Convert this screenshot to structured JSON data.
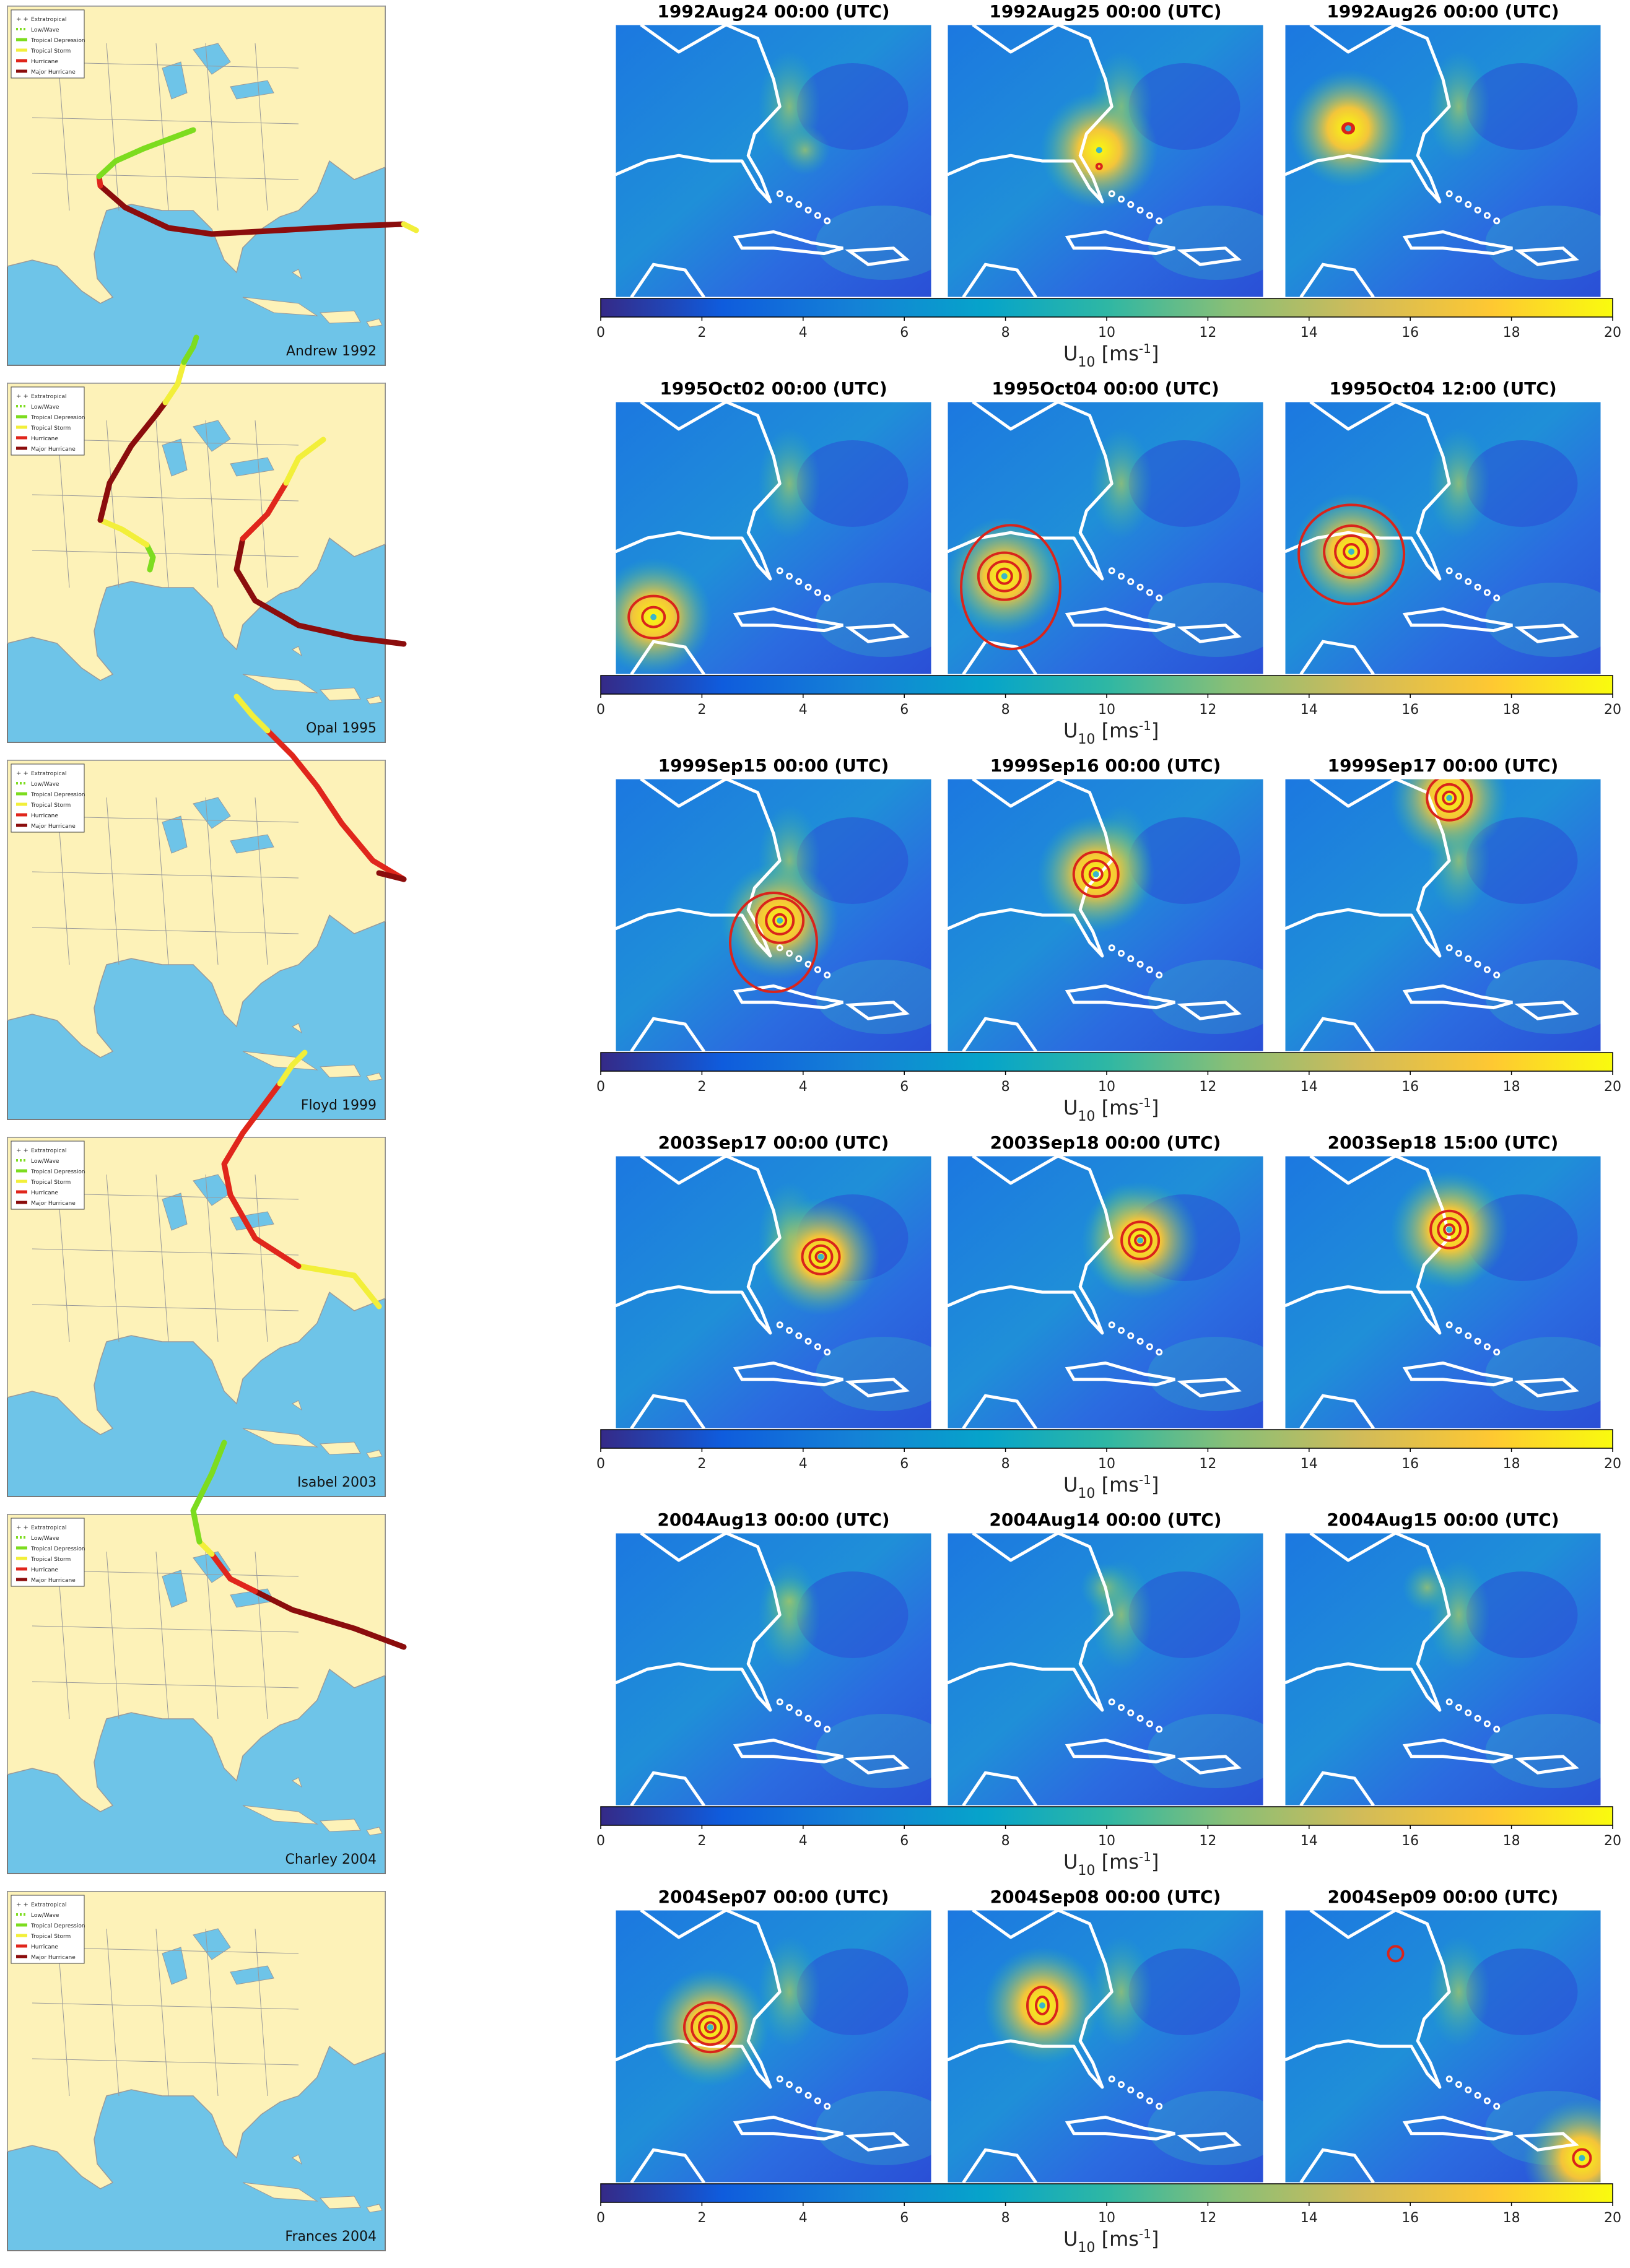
{
  "legend_items": [
    {
      "label": "Extratropical",
      "style": "plus"
    },
    {
      "label": "Low/Wave",
      "style": "dash"
    },
    {
      "label": "Tropical Depression",
      "color": "#7ddc1f"
    },
    {
      "label": "Tropical Storm",
      "color": "#f2ef3a"
    },
    {
      "label": "Hurricane",
      "color": "#e0261c"
    },
    {
      "label": "Major Hurricane",
      "color": "#8b0d0d"
    }
  ],
  "colors": {
    "ocean": "#6ec4e8",
    "land": "#fdf2b8",
    "border": "#9a9a9a",
    "track_td": "#7ddc1f",
    "track_ts": "#f2ef3a",
    "track_h": "#e0261c",
    "track_mh": "#8b0d0d",
    "contour": "#d9241b",
    "coast": "#ffffff"
  },
  "colorbar": {
    "ticks": [
      "0",
      "2",
      "4",
      "6",
      "8",
      "10",
      "12",
      "14",
      "16",
      "18",
      "20"
    ],
    "label_main": "U",
    "label_sub": "10",
    "label_unit": "[ms",
    "label_sup": "-1",
    "label_close": "]"
  },
  "storms": [
    {
      "name": "Andrew 1992",
      "track": [
        [
          "mh",
          [
            [
              640,
              362
            ],
            [
              560,
              365
            ],
            [
              440,
              372
            ],
            [
              330,
              378
            ],
            [
              260,
              368
            ],
            [
              190,
              335
            ],
            [
              150,
              300
            ]
          ]
        ],
        [
          "ts",
          [
            [
              640,
              362
            ],
            [
              660,
              372
            ]
          ]
        ],
        [
          "h",
          [
            [
              150,
              300
            ],
            [
              148,
              285
            ]
          ]
        ],
        [
          "td",
          [
            [
              148,
              285
            ],
            [
              175,
              260
            ],
            [
              220,
              240
            ],
            [
              260,
              225
            ],
            [
              300,
              210
            ]
          ]
        ]
      ],
      "panels": [
        {
          "title": "1992Aug24 00:00 (UTC)",
          "rings": [],
          "peak": [
            0.6,
            0.46
          ]
        },
        {
          "title": "1992Aug25 00:00 (UTC)",
          "rings": [
            [
              0.48,
              0.52,
              4,
              4
            ]
          ],
          "peak": [
            0.48,
            0.46
          ]
        },
        {
          "title": "1992Aug26 00:00 (UTC)",
          "rings": [
            [
              0.2,
              0.38,
              5,
              5
            ],
            [
              0.2,
              0.38,
              9,
              8
            ]
          ],
          "peak": [
            0.2,
            0.38
          ]
        }
      ]
    },
    {
      "name": "Opal 1995",
      "track": [
        [
          "td",
          [
            [
              225,
              880
            ],
            [
              235,
              900
            ],
            [
              230,
              920
            ]
          ]
        ],
        [
          "ts",
          [
            [
              150,
              840
            ],
            [
              185,
              855
            ],
            [
              225,
              880
            ]
          ]
        ],
        [
          "mh",
          [
            [
              150,
              840
            ],
            [
              165,
              780
            ],
            [
              200,
              720
            ],
            [
              240,
              670
            ],
            [
              255,
              650
            ]
          ]
        ],
        [
          "ts",
          [
            [
              255,
              650
            ],
            [
              275,
              620
            ],
            [
              285,
              585
            ]
          ]
        ],
        [
          "td",
          [
            [
              285,
              585
            ],
            [
              300,
              560
            ],
            [
              305,
              545
            ]
          ]
        ]
      ],
      "panels": [
        {
          "title": "1995Oct02 00:00 (UTC)",
          "rings": [
            [
              0.12,
              0.79,
              18,
              16
            ],
            [
              0.12,
              0.79,
              40,
              34
            ]
          ],
          "peak": [
            0.12,
            0.79
          ]
        },
        {
          "title": "1995Oct04 00:00 (UTC)",
          "rings": [
            [
              0.18,
              0.64,
              12,
              12
            ],
            [
              0.18,
              0.64,
              26,
              24
            ],
            [
              0.18,
              0.64,
              42,
              38
            ],
            [
              0.2,
              0.68,
              80,
              100
            ]
          ],
          "peak": [
            0.18,
            0.64
          ]
        },
        {
          "title": "1995Oct04 12:00 (UTC)",
          "rings": [
            [
              0.21,
              0.55,
              12,
              12
            ],
            [
              0.21,
              0.55,
              26,
              26
            ],
            [
              0.21,
              0.55,
              44,
              42
            ],
            [
              0.21,
              0.56,
              85,
              80
            ]
          ],
          "peak": [
            0.21,
            0.55
          ]
        }
      ]
    },
    {
      "name": "Floyd 1999",
      "track": [
        [
          "mh",
          [
            [
              640,
              1040
            ],
            [
              560,
              1030
            ],
            [
              470,
              1010
            ],
            [
              400,
              970
            ],
            [
              370,
              920
            ],
            [
              380,
              870
            ]
          ]
        ],
        [
          "h",
          [
            [
              380,
              870
            ],
            [
              420,
              830
            ],
            [
              450,
              780
            ]
          ]
        ],
        [
          "ts",
          [
            [
              450,
              780
            ],
            [
              470,
              740
            ],
            [
              510,
              710
            ]
          ]
        ]
      ],
      "panels": [
        {
          "title": "1999Sep15 00:00 (UTC)",
          "rings": [
            [
              0.52,
              0.52,
              10,
              10
            ],
            [
              0.52,
              0.52,
              22,
              22
            ],
            [
              0.52,
              0.52,
              38,
              36
            ],
            [
              0.5,
              0.6,
              70,
              80
            ]
          ],
          "peak": [
            0.52,
            0.52
          ]
        },
        {
          "title": "1999Sep16 00:00 (UTC)",
          "rings": [
            [
              0.47,
              0.35,
              10,
              10
            ],
            [
              0.47,
              0.35,
              22,
              22
            ],
            [
              0.47,
              0.35,
              36,
              36
            ]
          ],
          "peak": [
            0.47,
            0.35
          ]
        },
        {
          "title": "1999Sep17 00:00 (UTC)",
          "rings": [
            [
              0.52,
              0.07,
              10,
              10
            ],
            [
              0.52,
              0.07,
              22,
              22
            ],
            [
              0.52,
              0.07,
              36,
              36
            ]
          ],
          "peak": [
            0.52,
            0.07
          ]
        }
      ]
    },
    {
      "name": "Isabel 2003",
      "track": [
        [
          "h",
          [
            [
              640,
              1420
            ],
            [
              590,
              1390
            ],
            [
              540,
              1330
            ],
            [
              500,
              1270
            ],
            [
              460,
              1220
            ],
            [
              420,
              1180
            ]
          ]
        ],
        [
          "mh",
          [
            [
              640,
              1420
            ],
            [
              600,
              1410
            ]
          ]
        ],
        [
          "ts",
          [
            [
              420,
              1180
            ],
            [
              395,
              1155
            ],
            [
              370,
              1125
            ]
          ]
        ]
      ],
      "panels": [
        {
          "title": "2003Sep17 00:00 (UTC)",
          "rings": [
            [
              0.65,
              0.37,
              8,
              8
            ],
            [
              0.65,
              0.37,
              18,
              18
            ],
            [
              0.65,
              0.37,
              30,
              28
            ]
          ],
          "peak": [
            0.65,
            0.37
          ]
        },
        {
          "title": "2003Sep18 00:00 (UTC)",
          "rings": [
            [
              0.61,
              0.31,
              8,
              8
            ],
            [
              0.61,
              0.31,
              18,
              18
            ],
            [
              0.61,
              0.31,
              30,
              30
            ]
          ],
          "peak": [
            0.61,
            0.31
          ]
        },
        {
          "title": "2003Sep18 15:00 (UTC)",
          "rings": [
            [
              0.52,
              0.27,
              8,
              8
            ],
            [
              0.52,
              0.27,
              18,
              18
            ],
            [
              0.52,
              0.27,
              30,
              30
            ]
          ],
          "peak": [
            0.52,
            0.27
          ]
        }
      ]
    },
    {
      "name": "Charley 2004",
      "track": [
        [
          "ts",
          [
            [
              600,
              2110
            ],
            [
              560,
              2060
            ],
            [
              470,
              2045
            ]
          ]
        ],
        [
          "h",
          [
            [
              470,
              2045
            ],
            [
              400,
              2000
            ],
            [
              360,
              1930
            ],
            [
              350,
              1880
            ],
            [
              380,
              1830
            ],
            [
              410,
              1790
            ],
            [
              440,
              1750
            ]
          ]
        ],
        [
          "ts",
          [
            [
              440,
              1750
            ],
            [
              460,
              1720
            ],
            [
              480,
              1700
            ]
          ]
        ]
      ],
      "panels": [
        {
          "title": "2004Aug13 00:00 (UTC)",
          "rings": [],
          "peak": [
            0.55,
            0.25
          ]
        },
        {
          "title": "2004Aug14 00:00 (UTC)",
          "rings": [],
          "peak": [
            0.5,
            0.2
          ]
        },
        {
          "title": "2004Aug15 00:00 (UTC)",
          "rings": [],
          "peak": [
            0.45,
            0.2
          ]
        }
      ]
    },
    {
      "name": "Frances 2004",
      "track": [
        [
          "mh",
          [
            [
              640,
              2660
            ],
            [
              560,
              2630
            ],
            [
              460,
              2600
            ],
            [
              400,
              2570
            ]
          ]
        ],
        [
          "h",
          [
            [
              400,
              2570
            ],
            [
              360,
              2550
            ],
            [
              330,
              2510
            ]
          ]
        ],
        [
          "ts",
          [
            [
              330,
              2510
            ],
            [
              310,
              2490
            ]
          ]
        ],
        [
          "td",
          [
            [
              310,
              2490
            ],
            [
              300,
              2440
            ],
            [
              330,
              2380
            ],
            [
              350,
              2330
            ]
          ]
        ]
      ],
      "panels": [
        {
          "title": "2004Sep07 00:00 (UTC)",
          "rings": [
            [
              0.3,
              0.43,
              8,
              8
            ],
            [
              0.3,
              0.43,
              18,
              18
            ],
            [
              0.3,
              0.43,
              30,
              28
            ],
            [
              0.3,
              0.43,
              42,
              40
            ]
          ],
          "peak": [
            0.3,
            0.43
          ]
        },
        {
          "title": "2004Sep08 00:00 (UTC)",
          "rings": [
            [
              0.3,
              0.35,
              10,
              14
            ],
            [
              0.3,
              0.35,
              24,
              30
            ]
          ],
          "peak": [
            0.3,
            0.35
          ]
        },
        {
          "title": "2004Sep09 00:00 (UTC)",
          "rings": [
            [
              0.35,
              0.16,
              12,
              12
            ],
            [
              0.94,
              0.91,
              14,
              14
            ]
          ],
          "peak": [
            0.94,
            0.91
          ]
        }
      ]
    }
  ]
}
